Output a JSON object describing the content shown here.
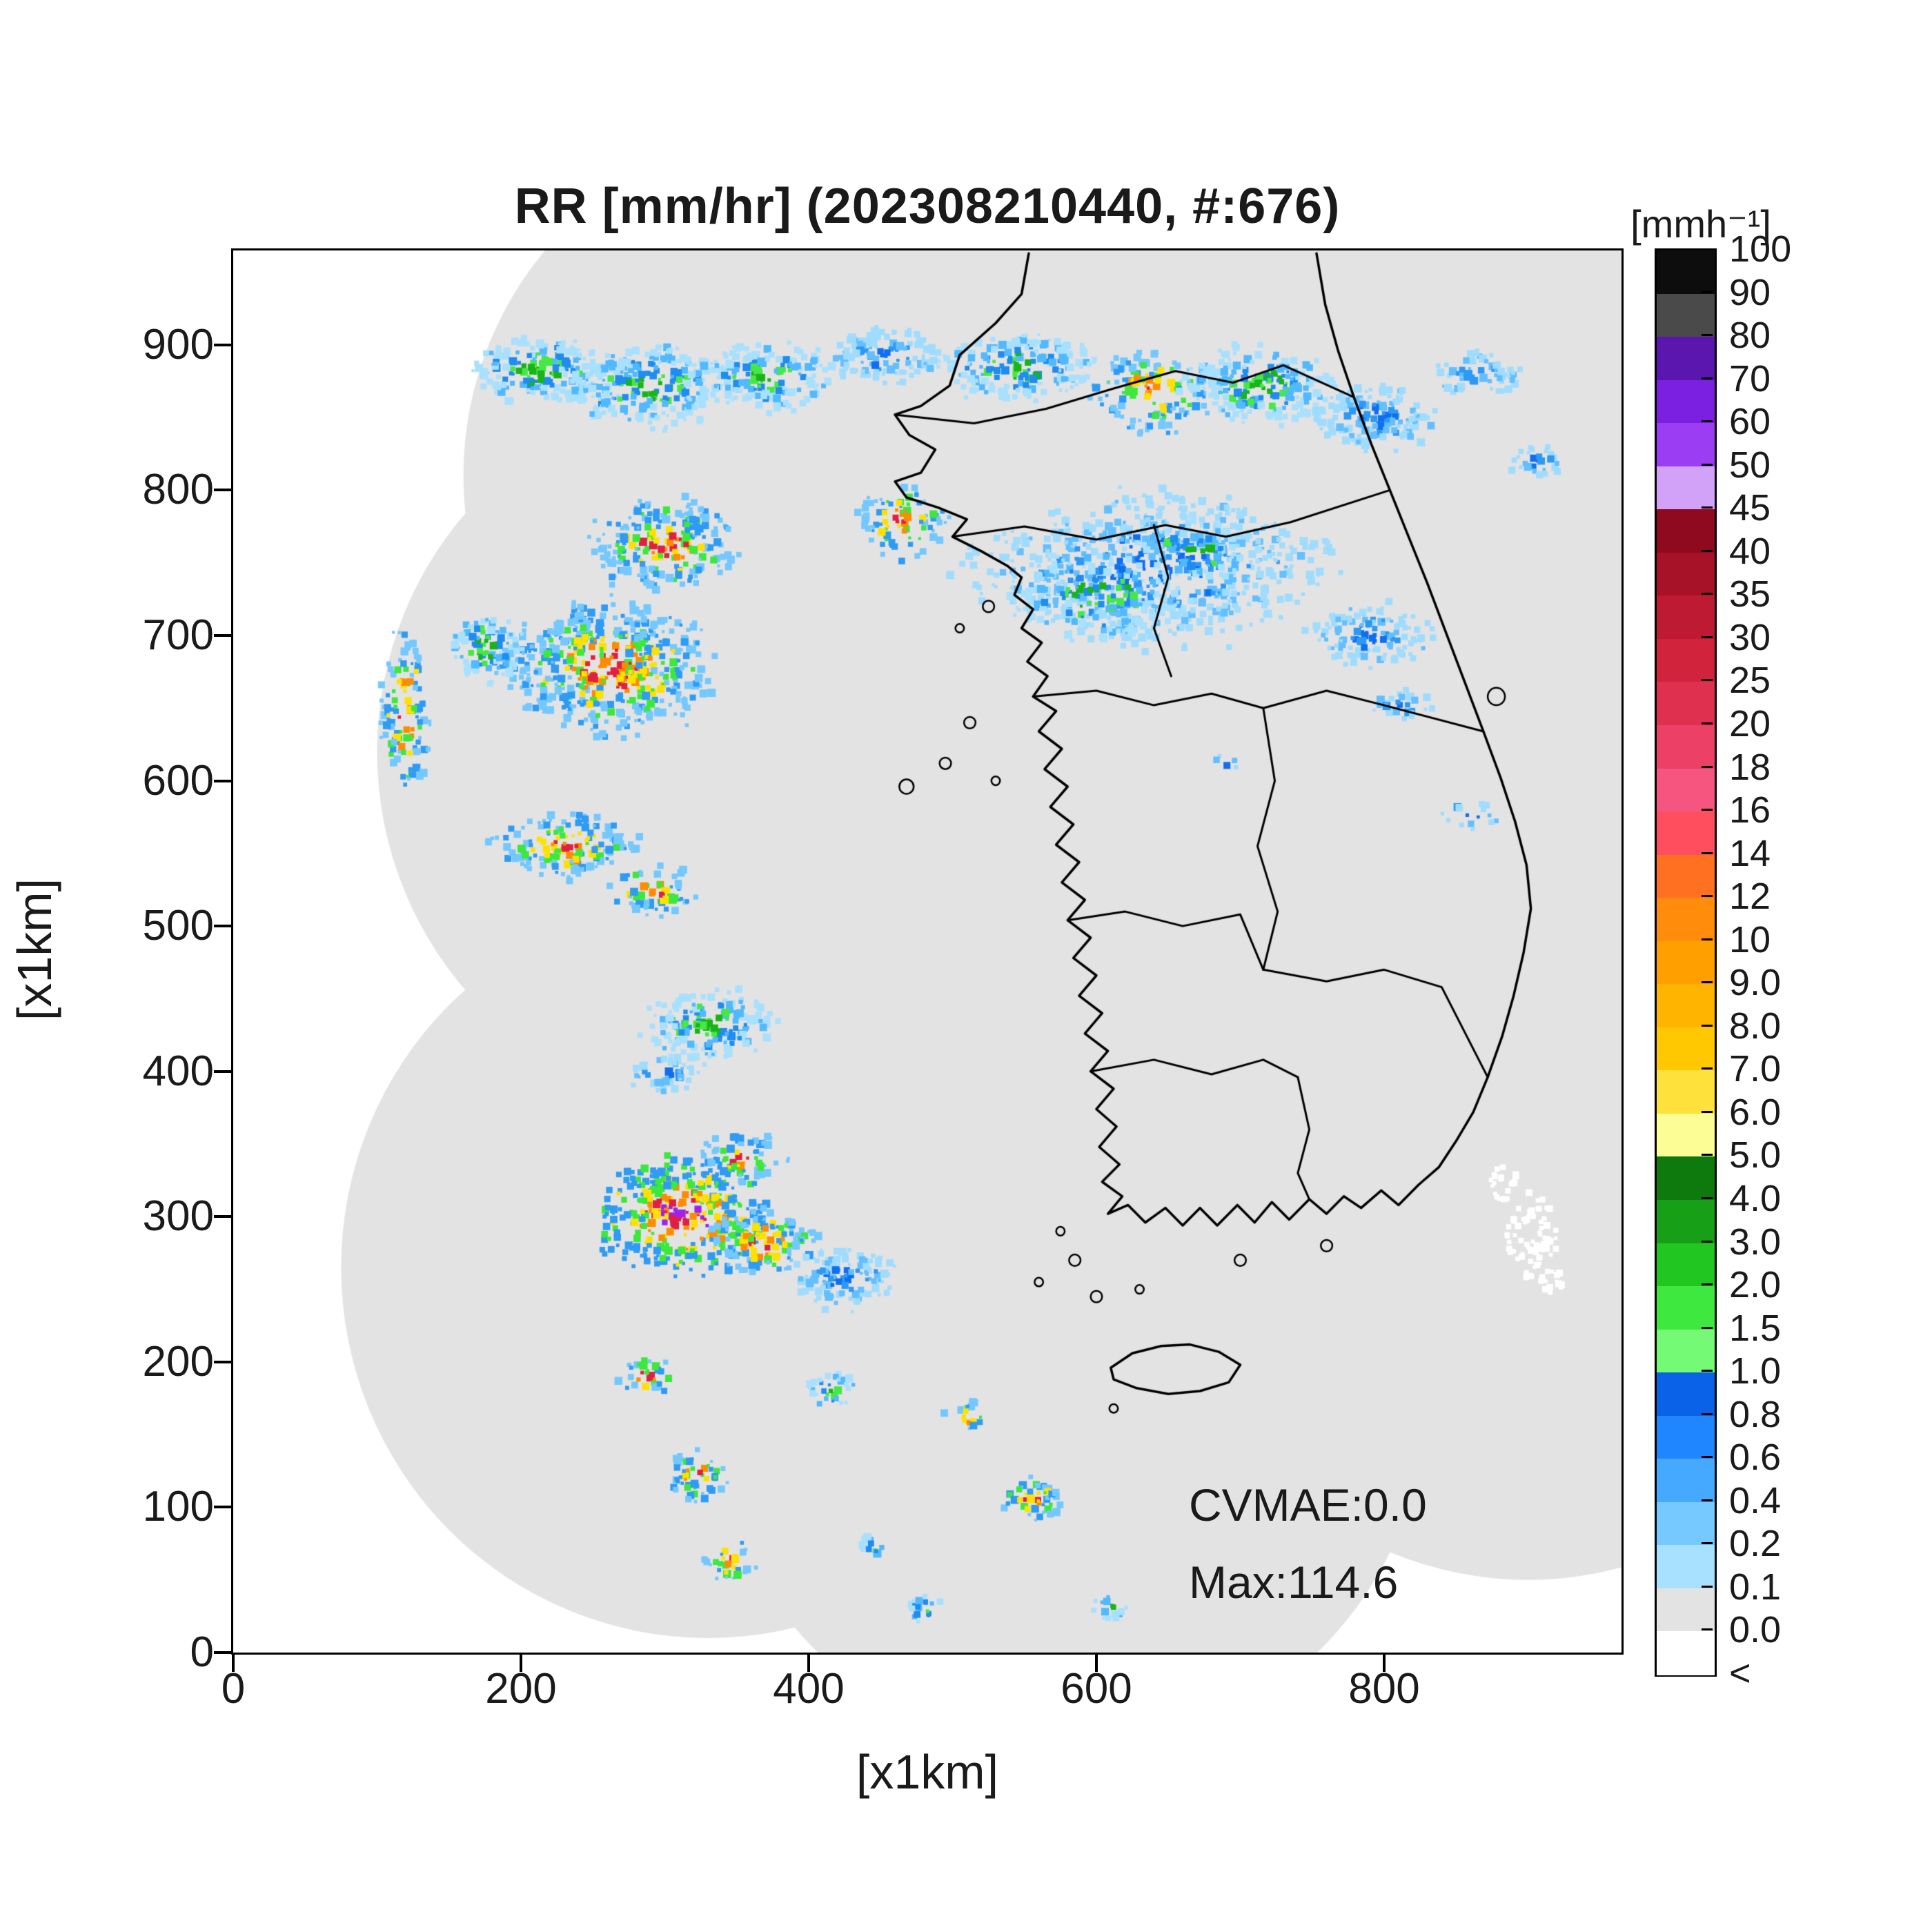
{
  "chart_data": {
    "type": "heatmap",
    "title": "RR [mm/hr] (202308210440, #:676)",
    "xlabel": "[x1km]",
    "ylabel": "[x1km]",
    "xlim": [
      0,
      965
    ],
    "ylim": [
      0,
      965
    ],
    "x_ticks": [
      0,
      200,
      400,
      600,
      800
    ],
    "y_ticks": [
      0,
      100,
      200,
      300,
      400,
      500,
      600,
      700,
      800,
      900
    ],
    "annotations": {
      "cvmae": "CVMAE:0.0",
      "max": "Max:114.6"
    },
    "colorbar": {
      "unit_label": "[mmh⁻¹]",
      "boundary_labels": [
        "100",
        "90",
        "80",
        "70",
        "60",
        "50",
        "45",
        "40",
        "35",
        "30",
        "25",
        "20",
        "18",
        "16",
        "14",
        "12",
        "10",
        "9.0",
        "8.0",
        "7.0",
        "6.0",
        "5.0",
        "4.0",
        "3.0",
        "2.0",
        "1.5",
        "1.0",
        "0.8",
        "0.6",
        "0.4",
        "0.2",
        "0.1",
        "0.0",
        "<"
      ],
      "segment_colors_top_to_bottom": [
        "#0d0d0d",
        "#4a4a4a",
        "#5c16b0",
        "#7b1fe0",
        "#9b3df2",
        "#d2a2f8",
        "#8f0a1e",
        "#a81228",
        "#bf1a33",
        "#d2233d",
        "#e03050",
        "#ec4066",
        "#f65580",
        "#ff4f5e",
        "#ff7021",
        "#ff8c0a",
        "#ffa000",
        "#ffb400",
        "#ffc800",
        "#ffe13c",
        "#fdfd96",
        "#0e7a0e",
        "#17a017",
        "#21c621",
        "#3fe83f",
        "#74fa74",
        "#0a62e8",
        "#1f86ff",
        "#45aaff",
        "#75c9ff",
        "#a8e0ff",
        "#e3e3e3",
        "#ffffff"
      ]
    },
    "background_color": "#ffffff",
    "coverage_color": "#e3e3e3",
    "coastline_color": "#000000",
    "coverage_circles": [
      {
        "x": 400,
        "y": 810,
        "r": 240
      },
      {
        "x": 610,
        "y": 870,
        "r": 250
      },
      {
        "x": 830,
        "y": 830,
        "r": 250
      },
      {
        "x": 350,
        "y": 620,
        "r": 250
      },
      {
        "x": 560,
        "y": 640,
        "r": 250
      },
      {
        "x": 880,
        "y": 560,
        "r": 250
      },
      {
        "x": 620,
        "y": 450,
        "r": 250
      },
      {
        "x": 430,
        "y": 330,
        "r": 250
      },
      {
        "x": 330,
        "y": 265,
        "r": 255
      },
      {
        "x": 900,
        "y": 300,
        "r": 250
      },
      {
        "x": 580,
        "y": 180,
        "r": 250
      }
    ],
    "echo_palettes": {
      "weak": [
        "#9fdcff",
        "#63bfff",
        "#2d99f7",
        "#0f6ff0"
      ],
      "moderate": [
        "#a8e0ff",
        "#50b9ff",
        "#1e8cf0",
        "#46e846",
        "#19b419"
      ],
      "strong": [
        "#73c8ff",
        "#2e9bf5",
        "#3ce83c",
        "#ffe100",
        "#ff8c00",
        "#e02040"
      ],
      "intense": [
        "#2e9bf5",
        "#3ce83c",
        "#ffe100",
        "#ff8c00",
        "#e02040",
        "#a020f0"
      ]
    },
    "echoes": [
      [
        215,
        882,
        45,
        22,
        "moderate",
        1
      ],
      [
        290,
        872,
        55,
        26,
        "moderate",
        1
      ],
      [
        370,
        878,
        45,
        22,
        "moderate",
        1
      ],
      [
        455,
        893,
        40,
        18,
        "weak",
        1
      ],
      [
        545,
        885,
        50,
        22,
        "moderate",
        1
      ],
      [
        640,
        868,
        40,
        26,
        "strong",
        0.8
      ],
      [
        715,
        872,
        50,
        26,
        "moderate",
        1
      ],
      [
        795,
        850,
        40,
        22,
        "weak",
        1
      ],
      [
        865,
        880,
        28,
        14,
        "weak",
        1
      ],
      [
        905,
        820,
        18,
        10,
        "weak",
        1
      ],
      [
        465,
        778,
        30,
        24,
        "strong",
        0.7
      ],
      [
        300,
        762,
        45,
        30,
        "strong",
        1
      ],
      [
        262,
        678,
        68,
        42,
        "strong",
        1.1
      ],
      [
        175,
        692,
        25,
        22,
        "moderate",
        1
      ],
      [
        120,
        648,
        16,
        55,
        "strong",
        0.8
      ],
      [
        230,
        556,
        48,
        20,
        "strong",
        1
      ],
      [
        292,
        524,
        28,
        16,
        "strong",
        0.8
      ],
      [
        330,
        432,
        42,
        24,
        "moderate",
        1
      ],
      [
        300,
        398,
        22,
        12,
        "weak",
        1
      ],
      [
        640,
        745,
        115,
        48,
        "weak",
        0.7
      ],
      [
        600,
        728,
        55,
        28,
        "moderate",
        0.8
      ],
      [
        668,
        758,
        40,
        22,
        "moderate",
        0.7
      ],
      [
        790,
        700,
        38,
        20,
        "weak",
        1
      ],
      [
        812,
        652,
        18,
        10,
        "weak",
        1
      ],
      [
        312,
        300,
        55,
        38,
        "intense",
        1
      ],
      [
        368,
        282,
        33,
        22,
        "strong",
        1
      ],
      [
        352,
        340,
        28,
        18,
        "strong",
        0.8
      ],
      [
        425,
        258,
        35,
        20,
        "weak",
        1
      ],
      [
        286,
        190,
        20,
        13,
        "strong",
        0.8
      ],
      [
        322,
        122,
        22,
        15,
        "strong",
        1
      ],
      [
        346,
        62,
        17,
        13,
        "strong",
        0.8
      ],
      [
        415,
        180,
        17,
        11,
        "moderate",
        1
      ],
      [
        510,
        162,
        14,
        10,
        "strong",
        0.8
      ],
      [
        556,
        106,
        20,
        14,
        "strong",
        1
      ],
      [
        610,
        32,
        12,
        8,
        "moderate",
        1
      ],
      [
        480,
        30,
        13,
        9,
        "moderate",
        1
      ],
      [
        445,
        72,
        11,
        8,
        "moderate",
        0.8
      ],
      [
        862,
        576,
        24,
        10,
        "weak",
        0.4
      ],
      [
        690,
        612,
        10,
        6,
        "weak",
        0.5
      ]
    ],
    "coastlines": {
      "mainland": [
        [
          553,
          963
        ],
        [
          548,
          935
        ],
        [
          530,
          915
        ],
        [
          505,
          893
        ],
        [
          498,
          872
        ],
        [
          478,
          858
        ],
        [
          460,
          852
        ],
        [
          470,
          838
        ],
        [
          488,
          828
        ],
        [
          478,
          812
        ],
        [
          460,
          806
        ],
        [
          468,
          795
        ],
        [
          490,
          788
        ],
        [
          510,
          780
        ],
        [
          500,
          768
        ],
        [
          520,
          758
        ],
        [
          538,
          748
        ],
        [
          548,
          740
        ],
        [
          543,
          728
        ],
        [
          556,
          718
        ],
        [
          548,
          705
        ],
        [
          562,
          695
        ],
        [
          552,
          682
        ],
        [
          566,
          672
        ],
        [
          556,
          658
        ],
        [
          572,
          648
        ],
        [
          560,
          634
        ],
        [
          576,
          622
        ],
        [
          564,
          608
        ],
        [
          580,
          596
        ],
        [
          568,
          582
        ],
        [
          584,
          570
        ],
        [
          572,
          556
        ],
        [
          588,
          544
        ],
        [
          576,
          530
        ],
        [
          592,
          518
        ],
        [
          580,
          504
        ],
        [
          596,
          492
        ],
        [
          584,
          478
        ],
        [
          600,
          466
        ],
        [
          588,
          452
        ],
        [
          604,
          440
        ],
        [
          592,
          426
        ],
        [
          608,
          414
        ],
        [
          596,
          400
        ],
        [
          612,
          388
        ],
        [
          600,
          374
        ],
        [
          614,
          362
        ],
        [
          602,
          348
        ],
        [
          616,
          336
        ],
        [
          604,
          324
        ],
        [
          618,
          314
        ],
        [
          608,
          302
        ],
        [
          622,
          308
        ],
        [
          634,
          296
        ],
        [
          648,
          306
        ],
        [
          660,
          294
        ],
        [
          672,
          306
        ],
        [
          684,
          294
        ],
        [
          698,
          308
        ],
        [
          710,
          296
        ],
        [
          722,
          310
        ],
        [
          734,
          298
        ],
        [
          748,
          312
        ],
        [
          760,
          302
        ],
        [
          772,
          314
        ],
        [
          784,
          306
        ],
        [
          798,
          318
        ],
        [
          810,
          308
        ],
        [
          824,
          322
        ],
        [
          838,
          334
        ],
        [
          850,
          352
        ],
        [
          862,
          372
        ],
        [
          872,
          396
        ],
        [
          882,
          424
        ],
        [
          890,
          452
        ],
        [
          897,
          482
        ],
        [
          902,
          512
        ],
        [
          899,
          542
        ],
        [
          891,
          572
        ],
        [
          881,
          602
        ],
        [
          869,
          634
        ],
        [
          856,
          668
        ],
        [
          843,
          702
        ],
        [
          830,
          736
        ],
        [
          817,
          768
        ],
        [
          804,
          800
        ],
        [
          791,
          832
        ],
        [
          779,
          864
        ],
        [
          768,
          896
        ],
        [
          759,
          928
        ],
        [
          753,
          963
        ]
      ],
      "borders": [
        [
          [
            460,
            852
          ],
          [
            515,
            846
          ],
          [
            565,
            856
          ],
          [
            612,
            870
          ],
          [
            655,
            882
          ],
          [
            695,
            874
          ],
          [
            730,
            886
          ],
          [
            779,
            864
          ]
        ],
        [
          [
            500,
            768
          ],
          [
            550,
            775
          ],
          [
            600,
            766
          ],
          [
            648,
            776
          ],
          [
            690,
            768
          ],
          [
            735,
            778
          ],
          [
            804,
            800
          ]
        ],
        [
          [
            640,
            776
          ],
          [
            650,
            740
          ],
          [
            640,
            705
          ],
          [
            652,
            672
          ]
        ],
        [
          [
            556,
            658
          ],
          [
            600,
            662
          ],
          [
            640,
            652
          ],
          [
            680,
            660
          ],
          [
            716,
            650
          ]
        ],
        [
          [
            716,
            650
          ],
          [
            760,
            662
          ],
          [
            800,
            652
          ],
          [
            869,
            634
          ]
        ],
        [
          [
            716,
            650
          ],
          [
            724,
            600
          ],
          [
            712,
            555
          ],
          [
            726,
            510
          ],
          [
            716,
            470
          ]
        ],
        [
          [
            580,
            504
          ],
          [
            620,
            510
          ],
          [
            660,
            500
          ],
          [
            700,
            508
          ],
          [
            716,
            470
          ]
        ],
        [
          [
            596,
            400
          ],
          [
            640,
            408
          ],
          [
            680,
            398
          ],
          [
            716,
            408
          ],
          [
            740,
            396
          ]
        ],
        [
          [
            716,
            470
          ],
          [
            760,
            462
          ],
          [
            800,
            470
          ],
          [
            840,
            458
          ],
          [
            872,
            396
          ]
        ],
        [
          [
            740,
            396
          ],
          [
            748,
            360
          ],
          [
            740,
            330
          ],
          [
            748,
            312
          ]
        ]
      ],
      "jeju": [
        [
          610,
          196
        ],
        [
          625,
          206
        ],
        [
          645,
          211
        ],
        [
          665,
          212
        ],
        [
          685,
          207
        ],
        [
          700,
          198
        ],
        [
          692,
          186
        ],
        [
          672,
          180
        ],
        [
          650,
          178
        ],
        [
          628,
          182
        ],
        [
          612,
          188
        ]
      ],
      "islets": [
        {
          "x": 512,
          "y": 640,
          "r": 4
        },
        {
          "x": 495,
          "y": 612,
          "r": 4
        },
        {
          "x": 468,
          "y": 596,
          "r": 5
        },
        {
          "x": 530,
          "y": 600,
          "r": 3
        },
        {
          "x": 525,
          "y": 720,
          "r": 4
        },
        {
          "x": 505,
          "y": 705,
          "r": 3
        },
        {
          "x": 585,
          "y": 270,
          "r": 4
        },
        {
          "x": 560,
          "y": 255,
          "r": 3
        },
        {
          "x": 600,
          "y": 245,
          "r": 4
        },
        {
          "x": 630,
          "y": 250,
          "r": 3
        },
        {
          "x": 575,
          "y": 290,
          "r": 3
        },
        {
          "x": 700,
          "y": 270,
          "r": 4
        },
        {
          "x": 760,
          "y": 280,
          "r": 4
        },
        {
          "x": 878,
          "y": 658,
          "r": 6
        },
        {
          "x": 612,
          "y": 168,
          "r": 3
        }
      ]
    },
    "missing_patches": [
      {
        "x": 903,
        "y": 287,
        "rx": 18,
        "ry": 30,
        "n": 70
      },
      {
        "x": 884,
        "y": 323,
        "rx": 10,
        "ry": 12,
        "n": 25
      },
      {
        "x": 916,
        "y": 255,
        "rx": 8,
        "ry": 10,
        "n": 18
      }
    ]
  }
}
